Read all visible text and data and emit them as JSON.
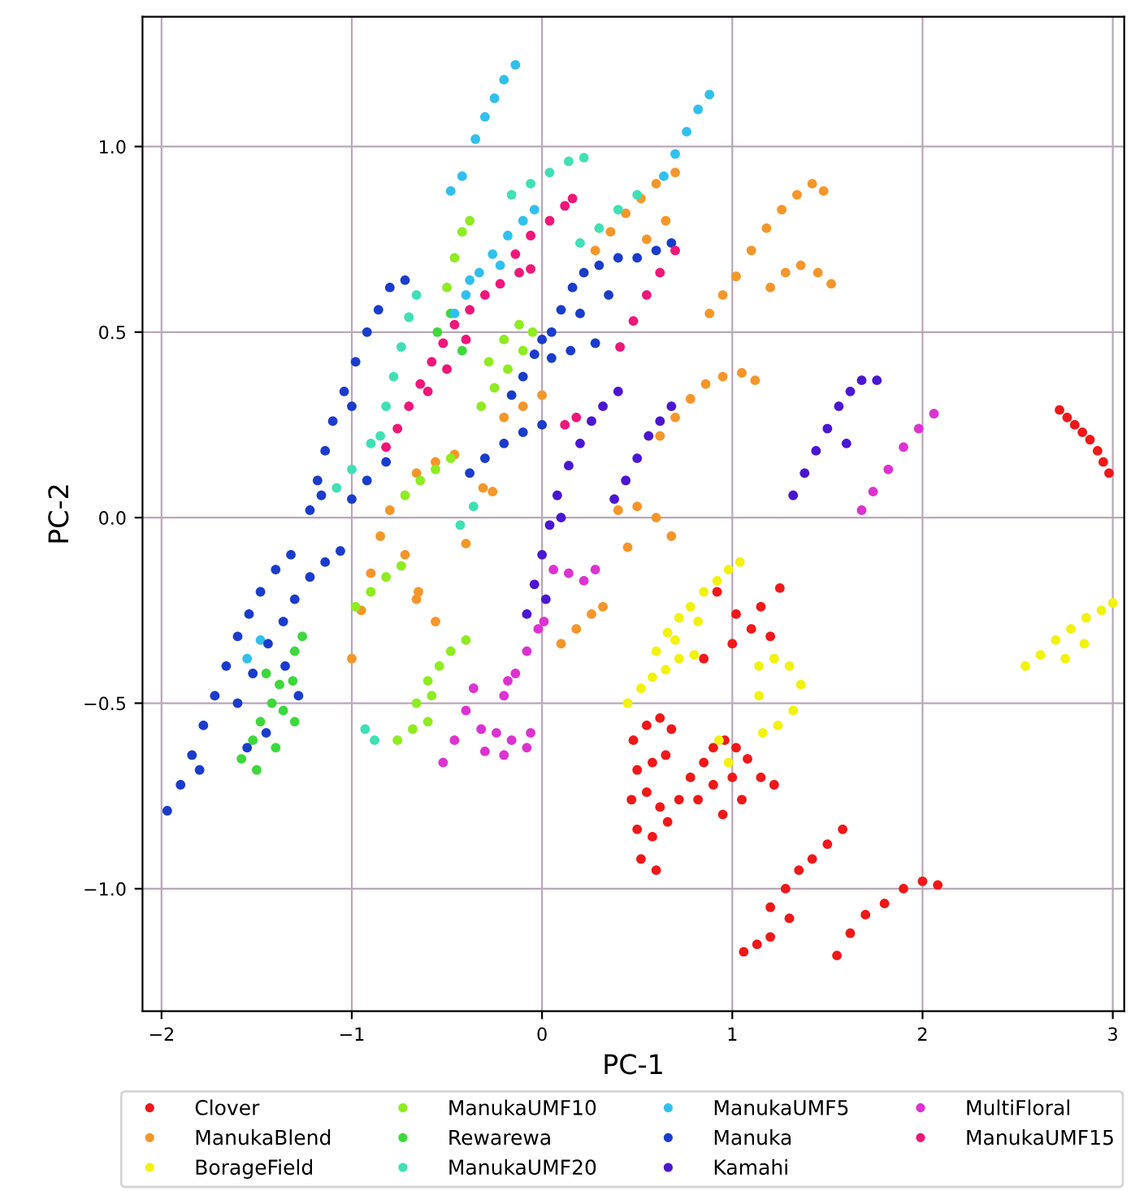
{
  "chart_data": {
    "type": "scatter",
    "xlabel": "PC-1",
    "ylabel": "PC-2",
    "xlim": [
      -2.1,
      3.06
    ],
    "ylim": [
      -1.33,
      1.35
    ],
    "xticks": [
      {
        "value": -2,
        "label": "−2"
      },
      {
        "value": -1,
        "label": "−1"
      },
      0,
      1,
      2,
      3
    ],
    "yticks": [
      {
        "value": -1,
        "label": "−1.0"
      },
      {
        "value": -0.5,
        "label": "−0.5"
      },
      {
        "value": 0,
        "label": "0.0"
      },
      {
        "value": 0.5,
        "label": "0.5"
      },
      {
        "value": 1,
        "label": "1.0"
      }
    ],
    "grid": true,
    "legend": "bottom",
    "marker": "circle",
    "series": [
      {
        "name": "Clover",
        "color": "#f01818",
        "x": [
          2.72,
          2.76,
          2.8,
          2.84,
          2.88,
          2.92,
          2.95,
          2.98,
          0.48,
          0.55,
          0.62,
          0.68,
          0.5,
          0.58,
          0.65,
          0.47,
          0.55,
          0.62,
          0.5,
          0.58,
          0.66,
          0.52,
          0.6,
          0.72,
          0.78,
          0.85,
          0.9,
          0.96,
          1.02,
          1.08,
          1.15,
          1.22,
          0.82,
          0.9,
          1.0,
          1.05,
          0.95,
          0.92,
          1.02,
          1.1,
          1.2,
          1.0,
          1.15,
          0.85,
          1.25,
          1.2,
          1.28,
          1.35,
          1.42,
          1.5,
          1.58,
          1.3,
          1.55,
          1.62,
          1.7,
          1.8,
          1.9,
          2.0,
          2.08,
          1.06,
          1.13,
          1.2
        ],
        "values": [
          0.29,
          0.27,
          0.25,
          0.23,
          0.21,
          0.18,
          0.15,
          0.12,
          -0.6,
          -0.56,
          -0.54,
          -0.57,
          -0.68,
          -0.66,
          -0.64,
          -0.76,
          -0.74,
          -0.78,
          -0.84,
          -0.86,
          -0.82,
          -0.92,
          -0.95,
          -0.76,
          -0.7,
          -0.66,
          -0.62,
          -0.6,
          -0.62,
          -0.65,
          -0.7,
          -0.72,
          -0.76,
          -0.72,
          -0.7,
          -0.76,
          -0.8,
          -0.2,
          -0.26,
          -0.3,
          -0.32,
          -0.34,
          -0.24,
          -0.38,
          -0.19,
          -1.05,
          -1.0,
          -0.95,
          -0.92,
          -0.88,
          -0.84,
          -1.08,
          -1.18,
          -1.12,
          -1.07,
          -1.04,
          -1.0,
          -0.98,
          -0.99,
          -1.17,
          -1.15,
          -1.13
        ]
      },
      {
        "name": "ManukaBlend",
        "color": "#f5962a",
        "x": [
          0.88,
          0.95,
          1.02,
          1.1,
          1.18,
          1.26,
          1.34,
          1.42,
          1.48,
          1.2,
          1.28,
          1.36,
          1.45,
          1.52,
          0.28,
          0.36,
          0.44,
          0.52,
          0.6,
          0.7,
          0.55,
          0.65,
          0.62,
          0.7,
          0.78,
          0.86,
          0.95,
          1.05,
          1.12,
          0.4,
          0.5,
          0.6,
          0.68,
          0.45,
          0.1,
          0.18,
          0.26,
          0.32,
          -0.2,
          -0.1,
          0.0,
          -0.66,
          -0.56,
          -0.46,
          -0.4,
          -0.31,
          -0.26,
          -0.95,
          -0.9,
          -0.85,
          -0.8,
          -0.72,
          -0.65,
          -0.66,
          -0.56,
          -1.0
        ],
        "values": [
          0.55,
          0.6,
          0.65,
          0.72,
          0.78,
          0.83,
          0.87,
          0.9,
          0.88,
          0.62,
          0.66,
          0.68,
          0.66,
          0.63,
          0.72,
          0.77,
          0.82,
          0.86,
          0.9,
          0.93,
          0.75,
          0.8,
          0.22,
          0.27,
          0.32,
          0.36,
          0.38,
          0.39,
          0.37,
          0.02,
          0.03,
          0.0,
          -0.05,
          -0.08,
          -0.34,
          -0.3,
          -0.26,
          -0.24,
          0.27,
          0.3,
          0.33,
          0.12,
          0.15,
          0.17,
          -0.07,
          0.08,
          0.07,
          -0.25,
          -0.15,
          -0.05,
          0.02,
          -0.1,
          -0.2,
          -0.22,
          -0.28,
          -0.38
        ]
      },
      {
        "name": "BorageField",
        "color": "#f2f20e",
        "x": [
          0.6,
          0.66,
          0.72,
          0.78,
          0.85,
          0.92,
          0.98,
          1.04,
          0.7,
          0.82,
          0.45,
          0.52,
          0.58,
          0.65,
          0.72,
          0.8,
          1.14,
          1.22,
          1.3,
          1.36,
          1.32,
          1.24,
          1.16,
          1.14,
          0.93,
          0.98,
          2.54,
          2.62,
          2.7,
          2.78,
          2.86,
          2.94,
          3.0,
          2.75,
          2.85
        ],
        "values": [
          -0.36,
          -0.31,
          -0.27,
          -0.24,
          -0.2,
          -0.17,
          -0.14,
          -0.12,
          -0.33,
          -0.28,
          -0.5,
          -0.46,
          -0.43,
          -0.41,
          -0.38,
          -0.37,
          -0.4,
          -0.38,
          -0.4,
          -0.45,
          -0.52,
          -0.56,
          -0.58,
          -0.48,
          -0.6,
          -0.66,
          -0.4,
          -0.37,
          -0.33,
          -0.3,
          -0.27,
          -0.25,
          -0.23,
          -0.38,
          -0.34
        ]
      },
      {
        "name": "ManukaUMF10",
        "color": "#8eec20",
        "x": [
          -0.32,
          -0.25,
          -0.18,
          -0.1,
          -0.05,
          -0.28,
          -0.2,
          -0.12,
          -0.5,
          -0.46,
          -0.42,
          -0.38,
          -0.72,
          -0.64,
          -0.56,
          -0.48,
          -0.98,
          -0.9,
          -0.82,
          -0.74,
          -0.66,
          -0.6,
          -0.54,
          -0.48,
          -0.4,
          -0.58,
          -0.76,
          -0.68,
          -0.6
        ],
        "values": [
          0.3,
          0.35,
          0.4,
          0.45,
          0.5,
          0.42,
          0.48,
          0.52,
          0.62,
          0.7,
          0.77,
          0.8,
          0.06,
          0.1,
          0.13,
          0.16,
          -0.24,
          -0.2,
          -0.16,
          -0.13,
          -0.5,
          -0.44,
          -0.4,
          -0.36,
          -0.33,
          -0.48,
          -0.6,
          -0.57,
          -0.55
        ]
      },
      {
        "name": "Rewarewa",
        "color": "#3cd83c",
        "x": [
          -1.58,
          -1.52,
          -1.48,
          -1.42,
          -1.38,
          -1.31,
          -1.3,
          -1.26,
          -1.45,
          -1.36,
          -1.5,
          -1.4,
          -1.3,
          -0.55,
          -0.48,
          -0.42
        ],
        "values": [
          -0.65,
          -0.6,
          -0.55,
          -0.5,
          -0.45,
          -0.44,
          -0.36,
          -0.32,
          -0.42,
          -0.52,
          -0.68,
          -0.62,
          -0.55,
          0.5,
          0.55,
          0.45
        ]
      },
      {
        "name": "ManukaUMF20",
        "color": "#40e0b4",
        "x": [
          -0.16,
          -0.06,
          0.04,
          0.14,
          0.22,
          -0.85,
          -0.82,
          -0.78,
          -0.74,
          -0.7,
          -0.66,
          0.2,
          0.3,
          0.4,
          0.5,
          -0.43,
          -0.36,
          -0.93,
          -0.88,
          -1.08,
          -1.0,
          -0.9
        ],
        "values": [
          0.87,
          0.9,
          0.93,
          0.96,
          0.97,
          0.22,
          0.3,
          0.38,
          0.46,
          0.54,
          0.6,
          0.74,
          0.78,
          0.83,
          0.87,
          -0.02,
          0.03,
          -0.57,
          -0.6,
          0.08,
          0.13,
          0.2
        ]
      },
      {
        "name": "ManukaUMF5",
        "color": "#30c0ee",
        "x": [
          -0.35,
          -0.3,
          -0.25,
          -0.2,
          -0.14,
          -0.48,
          -0.42,
          0.64,
          0.7,
          0.76,
          0.82,
          0.88,
          -0.46,
          -0.4,
          -0.33,
          -0.26,
          -0.18,
          -0.1,
          -0.04,
          -0.38,
          -0.22,
          -1.55,
          -1.48
        ],
        "values": [
          1.02,
          1.08,
          1.13,
          1.18,
          1.22,
          0.88,
          0.92,
          0.92,
          0.98,
          1.04,
          1.1,
          1.14,
          0.55,
          0.6,
          0.66,
          0.71,
          0.76,
          0.8,
          0.83,
          0.64,
          0.68,
          -0.38,
          -0.33
        ]
      },
      {
        "name": "Manuka",
        "color": "#1a3ccc",
        "x": [
          -1.22,
          -1.18,
          -1.14,
          -1.1,
          -1.04,
          -0.98,
          -0.92,
          -0.86,
          -0.8,
          -0.72,
          -1.16,
          -1.0,
          -1.0,
          -0.92,
          -0.82,
          0.05,
          0.1,
          0.16,
          0.22,
          0.3,
          0.4,
          0.5,
          0.6,
          0.68,
          0.2,
          0.35,
          -0.16,
          -0.1,
          -0.04,
          0.0,
          -0.38,
          -0.3,
          -0.2,
          -0.1,
          0.0,
          0.05,
          0.15,
          0.28,
          -1.97,
          -1.9,
          -1.84,
          -1.78,
          -1.72,
          -1.66,
          -1.6,
          -1.54,
          -1.48,
          -1.4,
          -1.32,
          -1.6,
          -1.52,
          -1.44,
          -1.36,
          -1.3,
          -1.22,
          -1.14,
          -1.06,
          -1.35,
          -1.28,
          -1.45,
          -1.55,
          -1.8
        ],
        "values": [
          0.02,
          0.1,
          0.18,
          0.26,
          0.34,
          0.42,
          0.5,
          0.56,
          0.62,
          0.64,
          0.06,
          0.3,
          0.05,
          0.1,
          0.15,
          0.5,
          0.56,
          0.62,
          0.66,
          0.68,
          0.7,
          0.7,
          0.72,
          0.74,
          0.55,
          0.6,
          0.33,
          0.38,
          0.44,
          0.48,
          0.12,
          0.16,
          0.2,
          0.23,
          0.25,
          0.43,
          0.45,
          0.47,
          -0.79,
          -0.72,
          -0.64,
          -0.56,
          -0.48,
          -0.4,
          -0.32,
          -0.26,
          -0.2,
          -0.14,
          -0.1,
          -0.5,
          -0.42,
          -0.34,
          -0.28,
          -0.22,
          -0.16,
          -0.12,
          -0.09,
          -0.4,
          -0.48,
          -0.58,
          -0.62,
          -0.68
        ]
      },
      {
        "name": "Kamahi",
        "color": "#4b16d2",
        "x": [
          -0.08,
          -0.04,
          0.0,
          0.04,
          0.08,
          0.14,
          0.2,
          0.26,
          0.32,
          0.4,
          0.02,
          0.1,
          0.38,
          0.44,
          0.5,
          0.56,
          0.62,
          0.68,
          1.32,
          1.38,
          1.44,
          1.5,
          1.56,
          1.62,
          1.68,
          1.76,
          1.6
        ],
        "values": [
          -0.26,
          -0.18,
          -0.1,
          -0.02,
          0.06,
          0.14,
          0.2,
          0.26,
          0.3,
          0.34,
          -0.22,
          0.0,
          0.05,
          0.1,
          0.16,
          0.22,
          0.26,
          0.3,
          0.06,
          0.12,
          0.18,
          0.24,
          0.3,
          0.34,
          0.37,
          0.37,
          0.2
        ]
      },
      {
        "name": "MultiFloral",
        "color": "#dd32d2",
        "x": [
          -0.2,
          -0.14,
          -0.08,
          -0.02,
          0.01,
          -0.18,
          -0.32,
          -0.24,
          -0.16,
          -0.08,
          -0.3,
          -0.2,
          -0.06,
          -0.52,
          -0.46,
          -0.4,
          -0.36,
          0.06,
          0.14,
          0.22,
          0.28,
          1.68,
          1.74,
          1.82,
          1.9,
          1.98,
          2.06
        ],
        "values": [
          -0.48,
          -0.42,
          -0.36,
          -0.3,
          -0.28,
          -0.44,
          -0.57,
          -0.58,
          -0.6,
          -0.62,
          -0.63,
          -0.64,
          -0.58,
          -0.66,
          -0.6,
          -0.52,
          -0.46,
          -0.14,
          -0.15,
          -0.17,
          -0.14,
          0.02,
          0.07,
          0.13,
          0.19,
          0.24,
          0.28
        ]
      },
      {
        "name": "ManukaUMF15",
        "color": "#f0167a",
        "x": [
          -0.82,
          -0.76,
          -0.7,
          -0.64,
          -0.58,
          -0.52,
          -0.46,
          -0.38,
          -0.3,
          -0.22,
          -0.12,
          -0.06,
          -0.6,
          -0.5,
          -0.4,
          -0.14,
          -0.06,
          0.04,
          0.12,
          0.16,
          0.41,
          0.48,
          0.55,
          0.62,
          0.7,
          0.12,
          0.18
        ],
        "values": [
          0.19,
          0.24,
          0.3,
          0.36,
          0.42,
          0.47,
          0.52,
          0.56,
          0.6,
          0.63,
          0.66,
          0.67,
          0.34,
          0.4,
          0.48,
          0.71,
          0.76,
          0.8,
          0.84,
          0.86,
          0.46,
          0.53,
          0.6,
          0.66,
          0.72,
          0.25,
          0.27
        ]
      }
    ]
  }
}
